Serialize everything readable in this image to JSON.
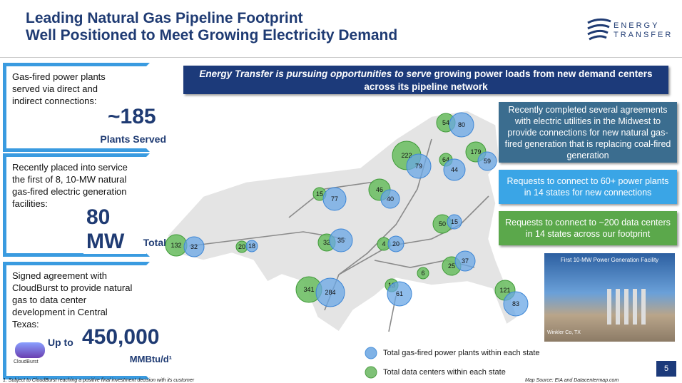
{
  "header": {
    "title": [
      "Leading Natural Gas Pipeline Footprint",
      "Well Positioned to Meet Growing Electricity Demand"
    ],
    "logo": [
      "ENERGY",
      "TRANSFER"
    ]
  },
  "stats": [
    {
      "text": "Gas-fired power plants served via direct and indirect connections:",
      "value": "~185",
      "caption": "Plants Served"
    },
    {
      "text": "Recently placed into service the first of 8, 10-MW natural gas-fired electric generation facilities:",
      "value": "80 MW",
      "caption": "Total"
    },
    {
      "text": "Signed agreement with CloudBurst to provide natural gas to data center development in Central Texas:",
      "prefix": "Up to",
      "value": "450,000",
      "caption": "MMBtu/d¹",
      "logo": "CloudBurst"
    }
  ],
  "banner": {
    "emphasis": "Energy Transfer is pursuing opportunities to serve",
    "rest": "growing power loads from new demand centers across its pipeline network"
  },
  "callouts": [
    "Recently completed several agreements with electric utilities in the Midwest to provide connections for new natural gas-fired generation that is replacing coal-fired generation",
    "Requests to connect to 60+ power plants in 14 states for new connections",
    "Requests to connect to ~200 data centers in 14 states across our footprint"
  ],
  "photo": {
    "caption": "First 10-MW Power Generation Facility",
    "location": "Winkler Co, TX"
  },
  "map": {
    "data_centers": [
      132,
      20,
      15,
      32,
      46,
      222,
      54,
      64,
      179,
      4,
      50,
      25,
      6,
      13,
      341,
      121
    ],
    "power_plants": [
      32,
      18,
      77,
      35,
      40,
      79,
      80,
      44,
      59,
      20,
      15,
      37,
      61,
      284,
      83
    ]
  },
  "legend": [
    "Total gas-fired power plants within each state",
    "Total data centers within each state"
  ],
  "footer": {
    "page": "5",
    "footnote": "1.     Subject to CloudBurst reaching a positive final investment decision with its customer",
    "source": "Map Source: EIA and Datacentermap.com"
  }
}
